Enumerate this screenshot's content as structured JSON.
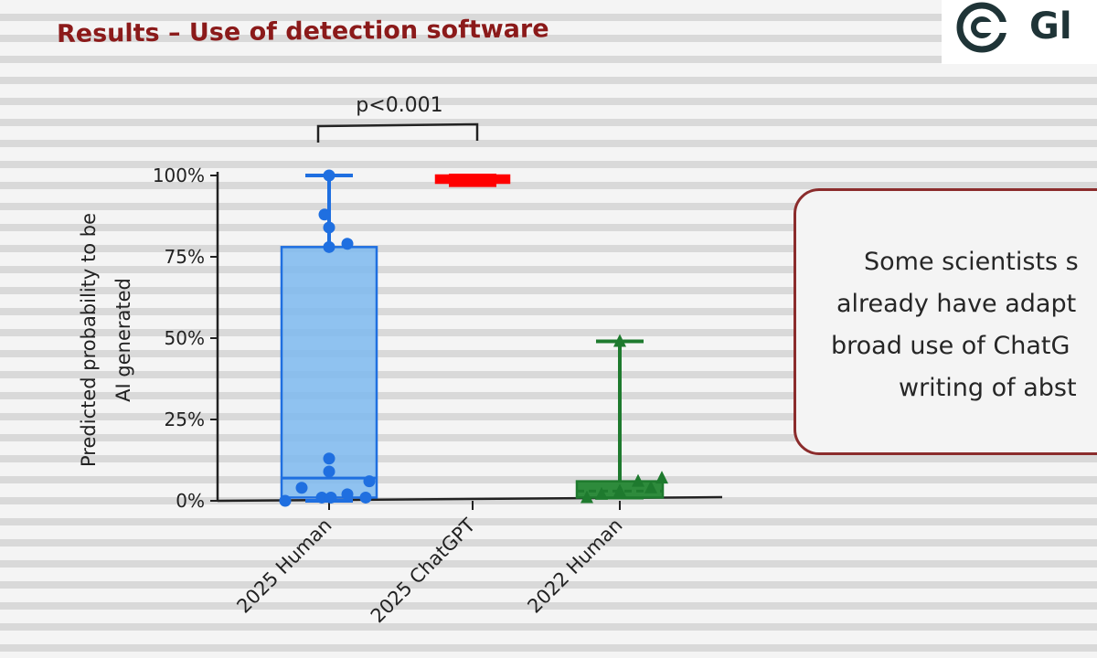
{
  "slide": {
    "title": "Results – Use of detection software",
    "logo_text": "Gl"
  },
  "callout": {
    "lines": [
      "Some scientists s",
      "already have adapt",
      "broad use of ChatG",
      "writing of abst"
    ]
  },
  "chart_data": {
    "type": "box",
    "ylabel_line1": "Predicted probability to be",
    "ylabel_line2": "AI generated",
    "ylim": [
      0,
      100
    ],
    "yticks": [
      "0%",
      "25%",
      "50%",
      "75%",
      "100%"
    ],
    "ytick_values": [
      0,
      25,
      50,
      75,
      100
    ],
    "categories": [
      "2025 Human",
      "2025 ChatGPT",
      "2022 Human"
    ],
    "significance": {
      "label": "p<0.001",
      "between": [
        "2025 Human",
        "2025 ChatGPT"
      ]
    },
    "series": [
      {
        "category": "2025 Human",
        "color": "#1f6fe0",
        "fill": "#7db9ee",
        "min": 0,
        "q1": 1,
        "median": 7,
        "q3": 78,
        "max": 100,
        "points": [
          0,
          4,
          1,
          9,
          13,
          1,
          2,
          6,
          1,
          78,
          79,
          84,
          88,
          100
        ]
      },
      {
        "category": "2025 ChatGPT",
        "color": "#ff0000",
        "fill": "#ff0000",
        "min": 97,
        "q1": 98,
        "median": 99,
        "q3": 100,
        "max": 100,
        "points": []
      },
      {
        "category": "2022 Human",
        "color": "#1e7a2e",
        "fill": "#2e8b3c",
        "min": 1,
        "q1": 1,
        "median": 3,
        "q3": 6,
        "max": 49,
        "points": [
          1,
          2,
          3,
          6,
          4,
          7,
          49
        ]
      }
    ]
  }
}
